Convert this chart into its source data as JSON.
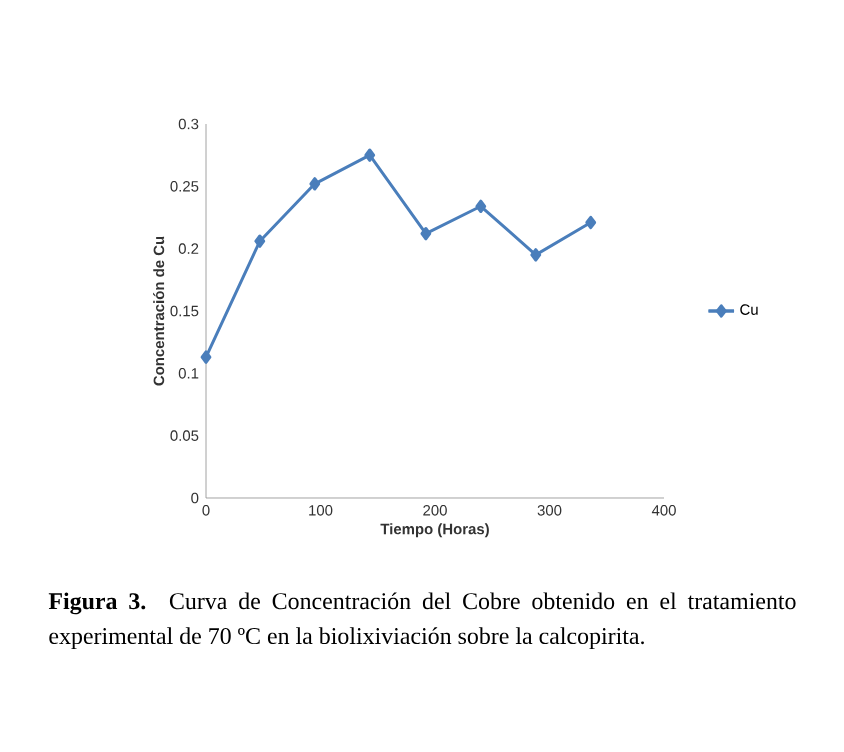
{
  "chart_data": {
    "type": "line",
    "xlabel": "Tiempo (Horas)",
    "ylabel": "Concentración de Cu",
    "x": [
      0,
      47,
      95,
      143,
      192,
      240,
      288,
      336
    ],
    "series": [
      {
        "name": "Cu",
        "color": "#4a7ebb",
        "values": [
          0.113,
          0.206,
          0.252,
          0.275,
          0.212,
          0.234,
          0.195,
          0.221
        ]
      }
    ],
    "xlim": [
      0,
      400
    ],
    "xticks": [
      0,
      100,
      200,
      300,
      400
    ],
    "ylim": [
      0,
      0.3
    ],
    "yticks": [
      0,
      0.05,
      0.1,
      0.15,
      0.2,
      0.25,
      0.3
    ],
    "marker": "diamond",
    "line_style": "solid",
    "legend": "right",
    "annotations": [
      "**Figura 3.** Curva de Concentración del Cobre obtenido en el tratamiento experimental de 70 ºC en la biolixiviación sobre la calcopirita."
    ]
  }
}
